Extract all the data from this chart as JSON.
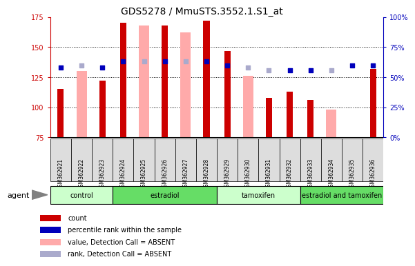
{
  "title": "GDS5278 / MmuSTS.3552.1.S1_at",
  "samples": [
    "GSM362921",
    "GSM362922",
    "GSM362923",
    "GSM362924",
    "GSM362925",
    "GSM362926",
    "GSM362927",
    "GSM362928",
    "GSM362929",
    "GSM362930",
    "GSM362931",
    "GSM362932",
    "GSM362933",
    "GSM362934",
    "GSM362935",
    "GSM362936"
  ],
  "red_values": [
    115,
    null,
    122,
    170,
    null,
    168,
    null,
    172,
    147,
    null,
    108,
    113,
    106,
    null,
    null,
    132
  ],
  "pink_values": [
    null,
    130,
    null,
    null,
    168,
    null,
    162,
    null,
    null,
    126,
    null,
    null,
    null,
    98,
    null,
    null
  ],
  "blue_dark": [
    133,
    null,
    133,
    138,
    null,
    138,
    null,
    138,
    135,
    null,
    null,
    131,
    131,
    null,
    135,
    135
  ],
  "blue_light": [
    null,
    135,
    null,
    null,
    138,
    null,
    138,
    null,
    null,
    133,
    131,
    null,
    null,
    131,
    null,
    null
  ],
  "groups": [
    {
      "label": "control",
      "start": 0,
      "end": 3,
      "color": "#ccffcc"
    },
    {
      "label": "estradiol",
      "start": 3,
      "end": 8,
      "color": "#66dd66"
    },
    {
      "label": "tamoxifen",
      "start": 8,
      "end": 12,
      "color": "#ccffcc"
    },
    {
      "label": "estradiol and tamoxifen",
      "start": 12,
      "end": 16,
      "color": "#66dd66"
    }
  ],
  "ylim_left": [
    75,
    175
  ],
  "ylim_right": [
    0,
    100
  ],
  "yticks_left": [
    75,
    100,
    125,
    150,
    175
  ],
  "yticks_right": [
    0,
    25,
    50,
    75,
    100
  ],
  "right_tick_labels": [
    "0%",
    "25%",
    "50%",
    "75%",
    "100%"
  ],
  "red_bar_width": 0.3,
  "pink_bar_width": 0.5,
  "dot_size": 25,
  "red_color": "#cc0000",
  "pink_color": "#ffaaaa",
  "blue_dark_color": "#0000bb",
  "blue_light_color": "#aaaacc",
  "grid_color": "#000000",
  "bg_color": "#ffffff",
  "legend": [
    {
      "label": "count",
      "color": "#cc0000"
    },
    {
      "label": "percentile rank within the sample",
      "color": "#0000bb"
    },
    {
      "label": "value, Detection Call = ABSENT",
      "color": "#ffaaaa"
    },
    {
      "label": "rank, Detection Call = ABSENT",
      "color": "#aaaacc"
    }
  ]
}
